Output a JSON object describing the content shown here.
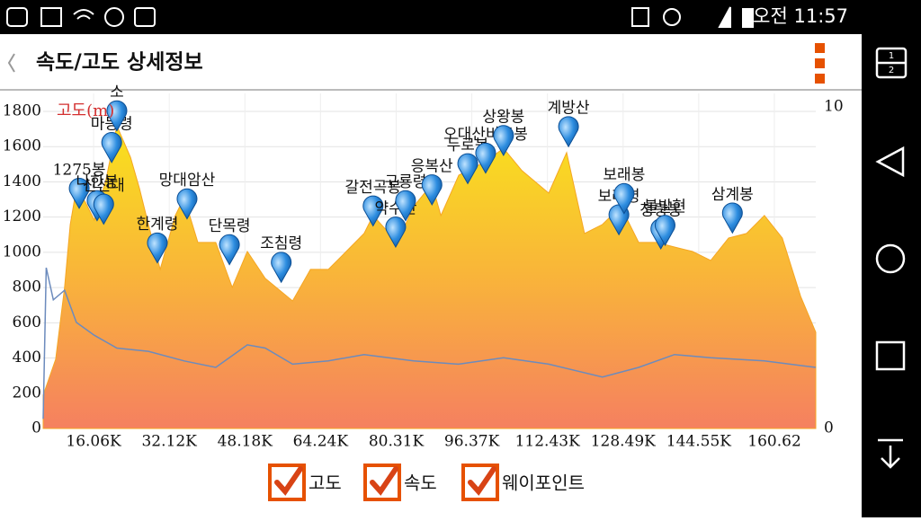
{
  "status_bar": {
    "time": "오전 11:57"
  },
  "app_bar": {
    "title": "속도/고도 상세정보"
  },
  "nav_bar": {
    "page_icon": [
      "1",
      "2"
    ]
  },
  "chart_data": {
    "type": "area",
    "y_axis_label": "고도(m)",
    "xlim": [
      5.35,
      169.4
    ],
    "xticks": [
      {
        "value": 16.06,
        "label": "16.06K"
      },
      {
        "value": 32.12,
        "label": "32.12K"
      },
      {
        "value": 48.18,
        "label": "48.18K"
      },
      {
        "value": 64.24,
        "label": "64.24K"
      },
      {
        "value": 80.31,
        "label": "80.31K"
      },
      {
        "value": 96.37,
        "label": "96.37K"
      },
      {
        "value": 112.43,
        "label": "112.43K"
      },
      {
        "value": 128.49,
        "label": "128.49K"
      },
      {
        "value": 144.55,
        "label": "144.55K"
      },
      {
        "value": 160.62,
        "label": "160.62"
      }
    ],
    "ylim": [
      0,
      1800
    ],
    "yticks": [
      0,
      200,
      400,
      600,
      800,
      1000,
      1200,
      1400,
      1600,
      1800
    ],
    "y2lim": [
      0,
      10
    ],
    "y2ticks": [
      0,
      10
    ],
    "grid": true,
    "series": [
      {
        "name": "고도",
        "color": "#f5a623",
        "x": [
          5.35,
          8.0,
          9.9,
          11.1,
          12.4,
          14.3,
          16.2,
          18.7,
          21.0,
          23.9,
          25.8,
          27.7,
          30.2,
          33.4,
          35.3,
          38.2,
          42.0,
          45.5,
          48.7,
          52.5,
          58.3,
          62.1,
          65.9,
          69.7,
          73.5,
          75.4,
          80.6,
          84.0,
          87.9,
          89.8,
          93.6,
          99.3,
          103.1,
          107.0,
          112.7,
          116.5,
          120.3,
          124.1,
          128.0,
          131.8,
          135.6,
          139.4,
          143.2,
          147.1,
          150.9,
          154.7,
          158.5,
          162.3,
          166.2,
          169.4
        ],
        "values": [
          189,
          393,
          801,
          1158,
          1362,
          1285,
          1183,
          1413,
          1719,
          1540,
          1362,
          1158,
          903,
          1209,
          1311,
          1056,
          1056,
          801,
          1005,
          852,
          724,
          903,
          903,
          1005,
          1107,
          1209,
          1056,
          1260,
          1387,
          1209,
          1438,
          1515,
          1591,
          1464,
          1336,
          1566,
          1107,
          1158,
          1260,
          1056,
          1056,
          1030,
          1005,
          954,
          1081,
          1107,
          1209,
          1081,
          750,
          546
        ]
      },
      {
        "name": "속도",
        "color": "#6c8bbd",
        "axis": "y2",
        "x": [
          5.35,
          6.0,
          7.5,
          9.9,
          12.4,
          16.2,
          21.0,
          27.7,
          35.3,
          42.0,
          48.7,
          52.5,
          58.3,
          65.9,
          73.5,
          84.0,
          93.6,
          103.1,
          112.7,
          124.1,
          131.8,
          139.4,
          147.1,
          158.5,
          169.4
        ],
        "values": [
          0.3,
          5.0,
          4.0,
          4.3,
          3.3,
          2.9,
          2.5,
          2.4,
          2.1,
          1.9,
          2.6,
          2.5,
          2.0,
          2.1,
          2.3,
          2.1,
          2.0,
          2.2,
          2.0,
          1.6,
          1.9,
          2.3,
          2.2,
          2.1,
          1.9
        ]
      }
    ],
    "waypoints": {
      "name": "웨이포인트",
      "color": "#1e88e5",
      "labels": [
        "1275봉",
        "나한봉",
        "신선대",
        "마등령",
        "소",
        "한계령",
        "망대암산",
        "단목령",
        "조침령",
        "갈전곡봉",
        "약수산",
        "구룡령",
        "응복산",
        "두로봉",
        "오대산비로봉",
        "상왕봉",
        "계방산",
        "보래령",
        "보래봉",
        "청량봉",
        "불발현",
        "삼계봉"
      ],
      "x": [
        13.0,
        16.8,
        18.2,
        19.9,
        21.0,
        29.6,
        35.9,
        44.9,
        55.9,
        75.4,
        80.2,
        82.3,
        87.9,
        95.5,
        99.3,
        103.1,
        116.9,
        127.6,
        128.7,
        136.5,
        137.4,
        151.7
      ],
      "values": [
        1250,
        1180,
        1160,
        1510,
        1690,
        940,
        1190,
        930,
        830,
        1150,
        1030,
        1180,
        1270,
        1390,
        1450,
        1550,
        1600,
        1100,
        1220,
        1020,
        1040,
        1110
      ]
    }
  }
}
